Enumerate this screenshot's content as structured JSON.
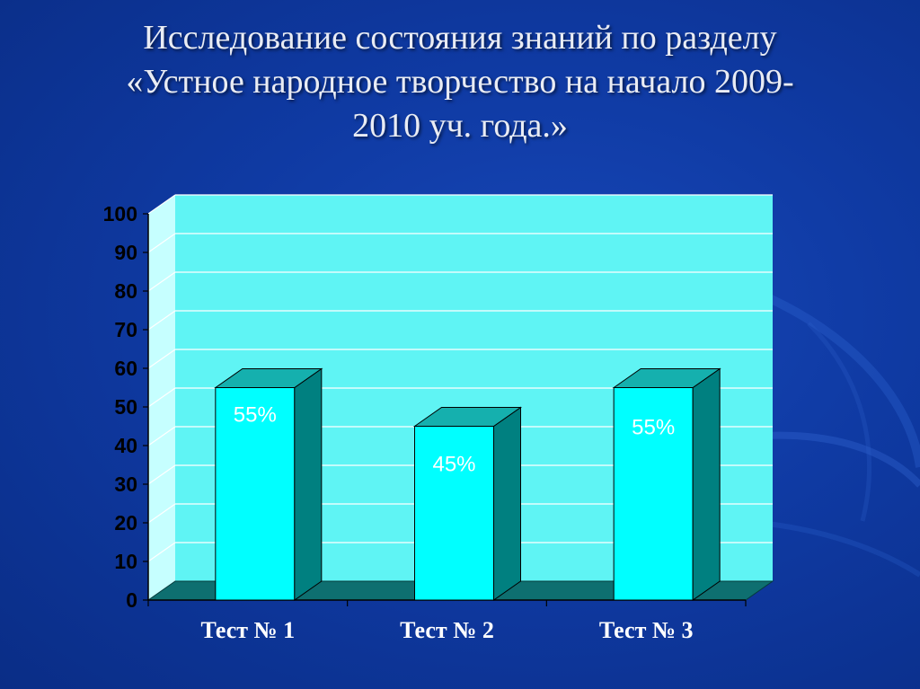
{
  "slide": {
    "title_lines": [
      "Исследование состояния знаний по разделу",
      "«Устное народное творчество на начало 2009-",
      "2010 уч. года.»"
    ]
  },
  "colors": {
    "background": "#0f3aa3",
    "title_text": "#e9ecf4",
    "plot_back_wall": "#5ff4f4",
    "plot_side_wall": "#c6ffff",
    "bar_front": "#00ffff",
    "bar_side": "#008080",
    "bar_top": "#15b0ae",
    "floor": "#0e6f70",
    "axis_text": "#000000",
    "category_text": "#ffffff",
    "data_label_text": "#ffffff"
  },
  "chart_data": {
    "type": "bar",
    "style": "3d-column",
    "title": "",
    "xlabel": "",
    "ylabel": "",
    "categories": [
      "Тест № 1",
      "Тест № 2",
      "Тест № 3"
    ],
    "series": [
      {
        "values": [
          55,
          45,
          55
        ]
      }
    ],
    "data_labels": [
      "55%",
      "45%",
      "55%"
    ],
    "ylim": [
      0,
      100
    ],
    "yticks": [
      0,
      10,
      20,
      30,
      40,
      50,
      60,
      70,
      80,
      90,
      100
    ],
    "ytick_labels": [
      "0",
      "10",
      "20",
      "30",
      "40",
      "50",
      "60",
      "70",
      "80",
      "90",
      "100"
    ],
    "grid": true,
    "legend": "none"
  }
}
